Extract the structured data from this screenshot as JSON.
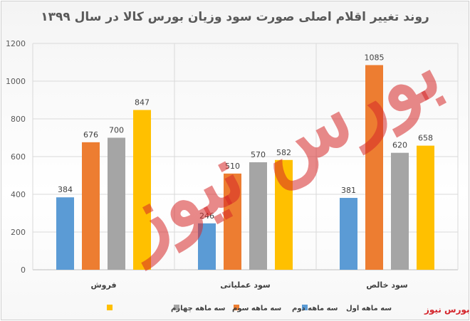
{
  "chart_data": {
    "type": "bar",
    "title": "روند تغییر اقلام اصلی صورت سود وزیان بورس کالا در سال ۱۳۹۹",
    "categories": [
      "فروش",
      "سود عملیاتی",
      "سود خالص"
    ],
    "series": [
      {
        "name": "سه ماهه اول",
        "color": "#5b9bd5",
        "values": [
          384,
          246,
          381
        ]
      },
      {
        "name": "سه ماهه دوم",
        "color": "#ed7d31",
        "values": [
          676,
          510,
          1085
        ]
      },
      {
        "name": "سه ماهه سوم",
        "color": "#a5a5a5",
        "values": [
          700,
          570,
          620
        ]
      },
      {
        "name": "سه ماهه چهارم",
        "color": "#ffc000",
        "values": [
          847,
          582,
          658
        ]
      }
    ],
    "ylim": [
      0,
      1200
    ],
    "yticks": [
      0,
      200,
      400,
      600,
      800,
      1000,
      1200
    ],
    "grid": true,
    "legend_position": "bottom"
  },
  "watermark": "بورس نیوز",
  "credit": "بورس نیوز"
}
